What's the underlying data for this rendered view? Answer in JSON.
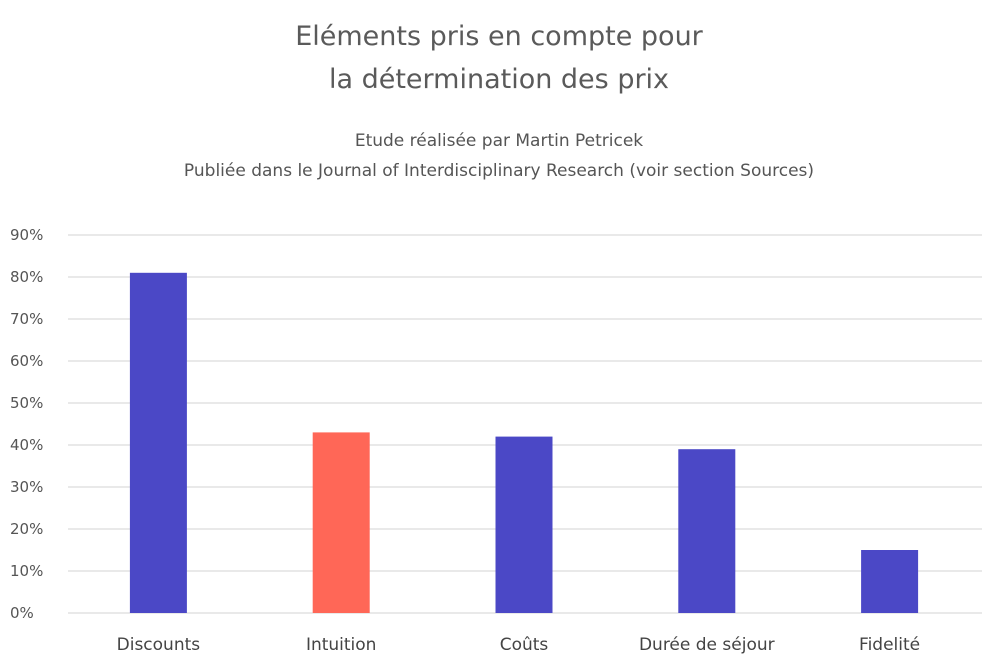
{
  "chart_data": {
    "type": "bar",
    "title": [
      "Eléments pris en compte pour",
      "la détermination des prix"
    ],
    "subtitle": [
      "Etude réalisée par Martin Petricek",
      "Publiée dans le Journal of Interdisciplinary Research (voir section Sources)"
    ],
    "categories": [
      "Discounts",
      "Intuition",
      "Coûts",
      "Durée de séjour",
      "Fidelité"
    ],
    "values": [
      81,
      43,
      42,
      39,
      15
    ],
    "colors": [
      "#4b48c6",
      "#ff6757",
      "#4b48c6",
      "#4b48c6",
      "#4b48c6"
    ],
    "ylim": [
      0,
      90
    ],
    "yticks": [
      "0%",
      "10%",
      "20%",
      "30%",
      "40%",
      "50%",
      "60%",
      "70%",
      "80%",
      "90%"
    ],
    "xlabel": "",
    "ylabel": "",
    "grid": true,
    "legend": "none"
  }
}
